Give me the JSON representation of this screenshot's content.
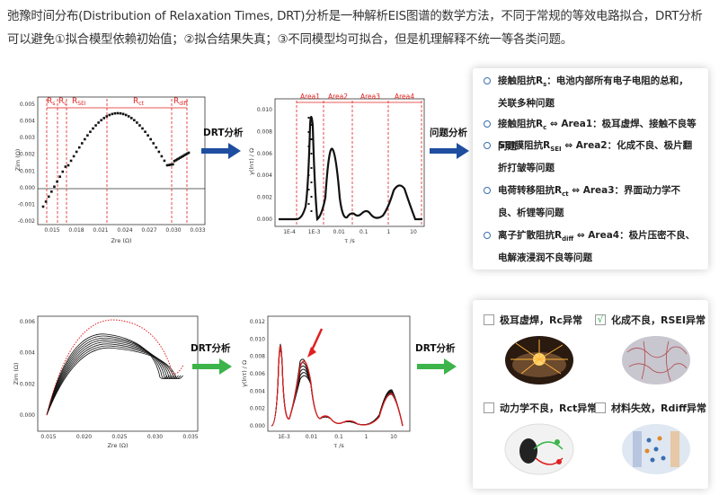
{
  "intro": {
    "text": "弛豫时间分布(Distribution of Relaxation Times, DRT)分析是一种解析EIS图谱的数学方法，不同于常规的等效电路拟合，DRT分析可以避免①拟合模型依赖初始值；②拟合结果失真；③不同模型均可拟合，但是机理解释不统一等各类问题。"
  },
  "arrows": {
    "top_drt": "DRT分析",
    "top_problem": "问题分析",
    "bottom_drt1": "DRT分析",
    "bottom_drt2": "DRT分析",
    "top_color": "#1f4ea0",
    "bottom_color": "#3cb44a"
  },
  "charts": {
    "eis_top": {
      "ylabel": "Zim (Ω)",
      "xlabel": "Zre (Ω)",
      "yticks": [
        "0.005",
        "0.004",
        "0.003",
        "0.002",
        "0.001",
        "0.000",
        "-0.001",
        "-0.002"
      ],
      "xticks": [
        "0.015",
        "0.018",
        "0.021",
        "0.024",
        "0.027",
        "0.030",
        "0.033"
      ],
      "regions": [
        "Rₛ",
        "Rc",
        "R",
        "R",
        "R"
      ],
      "region_subs": [
        "",
        "",
        "SEI",
        "ct",
        "diff"
      ]
    },
    "drt_top": {
      "ylabel": "γ(lnτ) / Ω",
      "xlabel": "τ /s",
      "yticks": [
        "0.010",
        "0.008",
        "0.006",
        "0.004",
        "0.002",
        "0.000"
      ],
      "xticks": [
        "1E-4",
        "1E-3",
        "0.01",
        "0.1",
        "1",
        "10"
      ],
      "areas": [
        "Area1",
        "Area2",
        "Area3",
        "Area4"
      ]
    },
    "eis_bottom": {
      "ylabel": "Zim (Ω)",
      "xlabel": "Zre (Ω)",
      "yticks": [
        "0.006",
        "0.004",
        "0.002",
        "0.000"
      ],
      "xticks": [
        "0.015",
        "0.020",
        "0.025",
        "0.030",
        "0.035"
      ]
    },
    "drt_bottom": {
      "ylabel": "γ(lnτ) / Ω",
      "xlabel": "τ /s",
      "yticks": [
        "0.012",
        "0.010",
        "0.008",
        "0.006",
        "0.004",
        "0.002",
        "0.000"
      ],
      "xticks": [
        "1E-3",
        "0.01",
        "0.1",
        "1",
        "10"
      ]
    }
  },
  "problems": [
    {
      "head": "接触阻抗R",
      "sub": "s",
      "rest": "：电池内部所有电子电阻的总和，关联多种问题"
    },
    {
      "head": "接触阻抗R",
      "sub": "c",
      "rest": " ⇔ Area1：极耳虚焊、接触不良等问题"
    },
    {
      "head": "SEI膜阻抗R",
      "sub": "SEI",
      "rest": " ⇔ Area2：化成不良、极片翻折打皱等问题"
    },
    {
      "head": "电荷转移阻抗R",
      "sub": "ct",
      "rest": " ⇔ Area3：界面动力学不良、析锂等问题"
    },
    {
      "head": "离子扩散阻抗R",
      "sub": "diff",
      "rest": " ⇔ Area4：极片压密不良、电解液浸润不良等问题"
    }
  ],
  "diagnosis": [
    {
      "label": "极耳虚焊，Rc异常",
      "checked": false,
      "icon": "welding-sparks-icon"
    },
    {
      "label": "化成不良，RSEI异常",
      "checked": true,
      "check_mark": "√",
      "icon": "electrode-map-icon"
    },
    {
      "label": "动力学不良，Rct异常",
      "checked": false,
      "icon": "charge-transfer-icon"
    },
    {
      "label": "材料失效，Rdiff异常",
      "checked": false,
      "icon": "material-diffusion-icon"
    }
  ]
}
